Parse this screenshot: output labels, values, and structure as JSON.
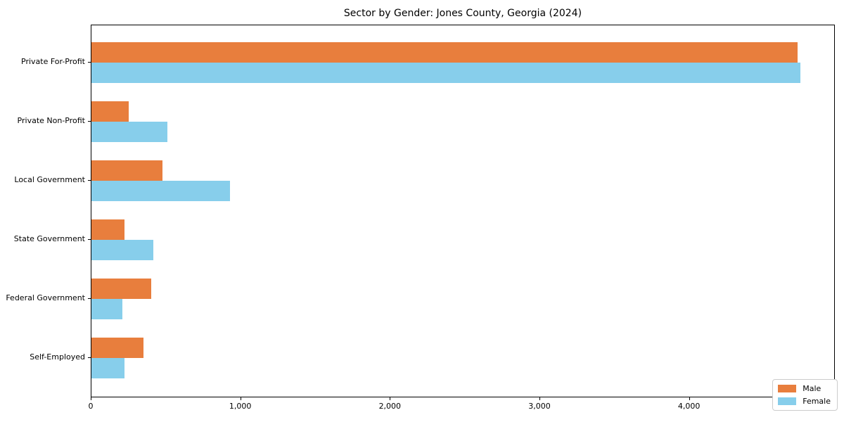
{
  "chart_data": {
    "type": "bar",
    "orientation": "horizontal",
    "title": "Sector by Gender: Jones County, Georgia (2024)",
    "categories": [
      "Private For-Profit",
      "Private Non-Profit",
      "Local Government",
      "State Government",
      "Federal Government",
      "Self-Employed"
    ],
    "series": [
      {
        "name": "Male",
        "color": "#e87e3d",
        "values": [
          4720,
          250,
          475,
          220,
          400,
          350
        ]
      },
      {
        "name": "Female",
        "color": "#87ceeb",
        "values": [
          4740,
          510,
          925,
          415,
          205,
          220
        ]
      }
    ],
    "xlim": [
      0,
      4975
    ],
    "x_ticks": [
      {
        "value": 0,
        "label": "0"
      },
      {
        "value": 1000,
        "label": "1,000"
      },
      {
        "value": 2000,
        "label": "2,000"
      },
      {
        "value": 3000,
        "label": "3,000"
      },
      {
        "value": 4000,
        "label": "4,000"
      }
    ],
    "grid": false,
    "legend_position": "lower right",
    "axis_color": "#000000",
    "background_color": "#ffffff"
  }
}
